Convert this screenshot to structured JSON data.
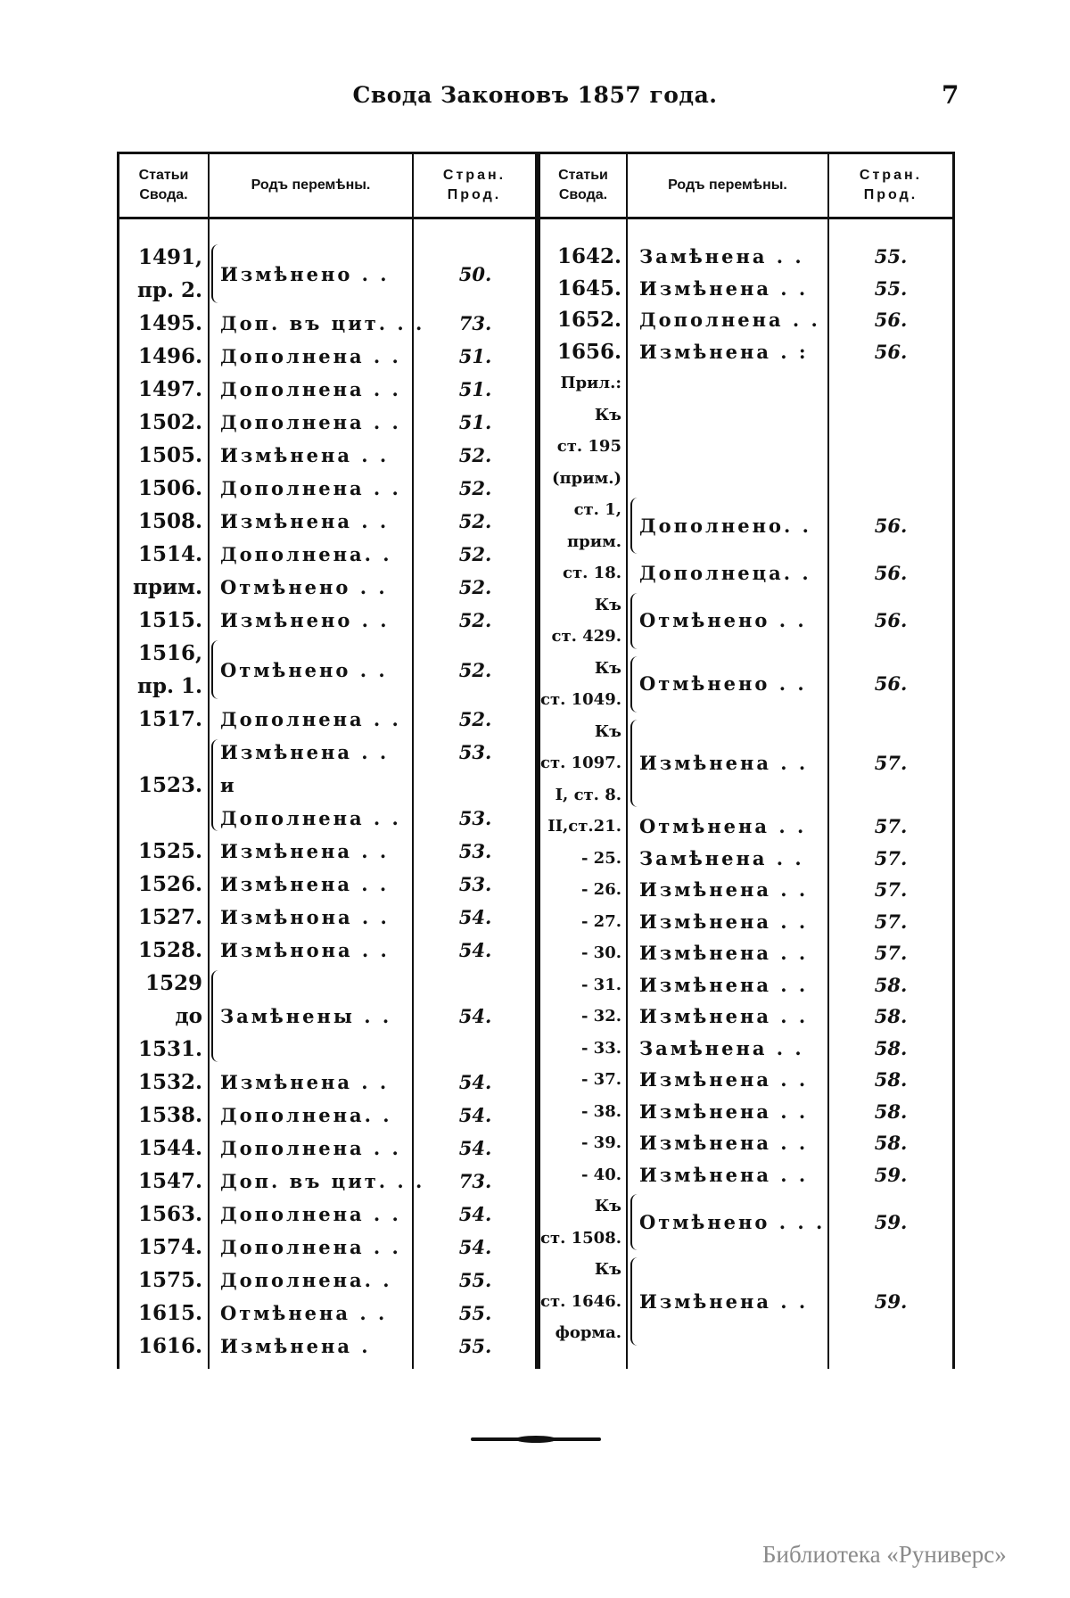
{
  "header": {
    "title": "Свода Законовъ 1857 года.",
    "page_number": "7"
  },
  "columns": {
    "article": [
      "Статьи",
      "Свода."
    ],
    "change": "Родъ перемѣны.",
    "page": [
      "Стран.",
      "Прод."
    ]
  },
  "left": [
    {
      "lines": 2,
      "brace": true,
      "article": [
        "1491,",
        "пр. 2."
      ],
      "change": [
        "Измѣнено . ."
      ],
      "page": [
        "50."
      ]
    },
    {
      "lines": 1,
      "article": [
        "1495."
      ],
      "change": [
        "Доп. въ цит. . ."
      ],
      "page": [
        "73."
      ]
    },
    {
      "lines": 1,
      "article": [
        "1496."
      ],
      "change": [
        "Дополнена . ."
      ],
      "page": [
        "51."
      ]
    },
    {
      "lines": 1,
      "article": [
        "1497."
      ],
      "change": [
        "Дополнена . ."
      ],
      "page": [
        "51."
      ]
    },
    {
      "lines": 1,
      "article": [
        "1502."
      ],
      "change": [
        "Дополнена . ."
      ],
      "page": [
        "51."
      ]
    },
    {
      "lines": 1,
      "article": [
        "1505."
      ],
      "change": [
        "Измѣнена . ."
      ],
      "page": [
        "52."
      ]
    },
    {
      "lines": 1,
      "article": [
        "1506."
      ],
      "change": [
        "Дополнена . ."
      ],
      "page": [
        "52."
      ]
    },
    {
      "lines": 1,
      "article": [
        "1508."
      ],
      "change": [
        "Измѣнена . ."
      ],
      "page": [
        "52."
      ]
    },
    {
      "lines": 1,
      "article": [
        "1514."
      ],
      "change": [
        "Дополнена. ."
      ],
      "page": [
        "52."
      ]
    },
    {
      "lines": 1,
      "article": [
        "прим."
      ],
      "change": [
        "Отмѣнено . ."
      ],
      "page": [
        "52."
      ]
    },
    {
      "lines": 1,
      "article": [
        "1515."
      ],
      "change": [
        "Измѣнено . ."
      ],
      "page": [
        "52."
      ]
    },
    {
      "lines": 2,
      "brace": true,
      "article": [
        "1516,",
        "пр. 1."
      ],
      "change": [
        "Отмѣнено . ."
      ],
      "page": [
        "52."
      ]
    },
    {
      "lines": 1,
      "article": [
        "1517."
      ],
      "change": [
        "Дополнена . ."
      ],
      "page": [
        "52."
      ]
    },
    {
      "lines": 3,
      "brace": true,
      "article": [
        "",
        "1523.",
        ""
      ],
      "change": [
        "Измѣнена . .",
        "и",
        "Дополнена . ."
      ],
      "page": [
        "53.",
        "",
        "53."
      ]
    },
    {
      "lines": 1,
      "article": [
        "1525."
      ],
      "change": [
        "Измѣнена . ."
      ],
      "page": [
        "53."
      ]
    },
    {
      "lines": 1,
      "article": [
        "1526."
      ],
      "change": [
        "Измѣнена . ."
      ],
      "page": [
        "53."
      ]
    },
    {
      "lines": 1,
      "article": [
        "1527."
      ],
      "change": [
        "Измѣнона . ."
      ],
      "page": [
        "54."
      ]
    },
    {
      "lines": 1,
      "article": [
        "1528."
      ],
      "change": [
        "Измѣнона . ."
      ],
      "page": [
        "54."
      ]
    },
    {
      "lines": 3,
      "brace": true,
      "article": [
        "1529",
        "до",
        "1531."
      ],
      "change": [
        "Замѣнены . ."
      ],
      "page": [
        "54."
      ]
    },
    {
      "lines": 1,
      "article": [
        "1532."
      ],
      "change": [
        "Измѣнена . ."
      ],
      "page": [
        "54."
      ]
    },
    {
      "lines": 1,
      "article": [
        "1538."
      ],
      "change": [
        "Дополнена. ."
      ],
      "page": [
        "54."
      ]
    },
    {
      "lines": 1,
      "article": [
        "1544."
      ],
      "change": [
        "Дополнена . ."
      ],
      "page": [
        "54."
      ]
    },
    {
      "lines": 1,
      "article": [
        "1547."
      ],
      "change": [
        "Доп. въ цит. . ."
      ],
      "page": [
        "73."
      ]
    },
    {
      "lines": 1,
      "article": [
        "1563."
      ],
      "change": [
        "Дополнена . ."
      ],
      "page": [
        "54."
      ]
    },
    {
      "lines": 1,
      "article": [
        "1574."
      ],
      "change": [
        "Дополнена . ."
      ],
      "page": [
        "54."
      ]
    },
    {
      "lines": 1,
      "article": [
        "1575."
      ],
      "change": [
        "Дополнена. ."
      ],
      "page": [
        "55."
      ]
    },
    {
      "lines": 1,
      "article": [
        "1615."
      ],
      "change": [
        "Отмѣнена . ."
      ],
      "page": [
        "55."
      ]
    },
    {
      "lines": 1,
      "article": [
        "1616."
      ],
      "change": [
        "Измѣнена ."
      ],
      "page": [
        "55."
      ]
    }
  ],
  "right": [
    {
      "lines": 1,
      "article": [
        "1642."
      ],
      "change": [
        "Замѣнена . ."
      ],
      "page": [
        "55."
      ]
    },
    {
      "lines": 1,
      "article": [
        "1645."
      ],
      "change": [
        "Измѣнена . ."
      ],
      "page": [
        "55."
      ]
    },
    {
      "lines": 1,
      "article": [
        "1652."
      ],
      "change": [
        "Дополнена . ."
      ],
      "page": [
        "56."
      ]
    },
    {
      "lines": 1,
      "article": [
        "1656."
      ],
      "change": [
        "Измѣнена . :"
      ],
      "page": [
        "56."
      ]
    },
    {
      "lines": 4,
      "small": true,
      "article": [
        "Прил.:",
        "Къ",
        "ст. 195",
        "(прим.)"
      ],
      "change": [
        ""
      ],
      "page": [
        ""
      ]
    },
    {
      "lines": 2,
      "brace": true,
      "small": true,
      "article": [
        "ст. 1,",
        "прим."
      ],
      "change": [
        "Дополнено. ."
      ],
      "page": [
        "56."
      ]
    },
    {
      "lines": 1,
      "small": true,
      "article": [
        "ст. 18."
      ],
      "change": [
        "Дополнеца. ."
      ],
      "page": [
        "56."
      ]
    },
    {
      "lines": 2,
      "brace": true,
      "small": true,
      "article": [
        "Къ",
        "ст. 429."
      ],
      "change": [
        "Отмѣнено . ."
      ],
      "page": [
        "56."
      ]
    },
    {
      "lines": 2,
      "brace": true,
      "small": true,
      "article": [
        "Къ",
        "ст. 1049."
      ],
      "change": [
        "Отмѣнено . ."
      ],
      "page": [
        "56."
      ]
    },
    {
      "lines": 3,
      "brace": true,
      "small": true,
      "article": [
        "Къ",
        "ст. 1097.",
        "I, ст. 8."
      ],
      "change": [
        "Измѣнена . ."
      ],
      "page": [
        "57."
      ]
    },
    {
      "lines": 1,
      "small": true,
      "article": [
        "II,ст.21."
      ],
      "change": [
        "Отмѣнена . ."
      ],
      "page": [
        "57."
      ]
    },
    {
      "lines": 1,
      "small": true,
      "article": [
        "- 25."
      ],
      "change": [
        "Замѣнена . ."
      ],
      "page": [
        "57."
      ]
    },
    {
      "lines": 1,
      "small": true,
      "article": [
        "- 26."
      ],
      "change": [
        "Измѣнена . ."
      ],
      "page": [
        "57."
      ]
    },
    {
      "lines": 1,
      "small": true,
      "article": [
        "- 27."
      ],
      "change": [
        "Измѣнена . ."
      ],
      "page": [
        "57."
      ]
    },
    {
      "lines": 1,
      "small": true,
      "article": [
        "- 30."
      ],
      "change": [
        "Измѣнена . ."
      ],
      "page": [
        "57."
      ]
    },
    {
      "lines": 1,
      "small": true,
      "article": [
        "- 31."
      ],
      "change": [
        "Измѣнена . ."
      ],
      "page": [
        "58."
      ]
    },
    {
      "lines": 1,
      "small": true,
      "article": [
        "- 32."
      ],
      "change": [
        "Измѣнена . ."
      ],
      "page": [
        "58."
      ]
    },
    {
      "lines": 1,
      "small": true,
      "article": [
        "- 33."
      ],
      "change": [
        "Замѣнена . ."
      ],
      "page": [
        "58."
      ]
    },
    {
      "lines": 1,
      "small": true,
      "article": [
        "- 37."
      ],
      "change": [
        "Измѣнена . ."
      ],
      "page": [
        "58."
      ]
    },
    {
      "lines": 1,
      "small": true,
      "article": [
        "- 38."
      ],
      "change": [
        "Измѣнена . ."
      ],
      "page": [
        "58."
      ]
    },
    {
      "lines": 1,
      "small": true,
      "article": [
        "- 39."
      ],
      "change": [
        "Измѣнена . ."
      ],
      "page": [
        "58."
      ]
    },
    {
      "lines": 1,
      "small": true,
      "article": [
        "- 40."
      ],
      "change": [
        "Измѣнена . ."
      ],
      "page": [
        "59."
      ]
    },
    {
      "lines": 2,
      "brace": true,
      "small": true,
      "article": [
        "Къ",
        "ст. 1508."
      ],
      "change": [
        "Отмѣнено . . ."
      ],
      "page": [
        "59."
      ]
    },
    {
      "lines": 3,
      "brace": true,
      "small": true,
      "article": [
        "Къ",
        "ст. 1646.",
        "форма."
      ],
      "change": [
        "Измѣнена . ."
      ],
      "page": [
        "59."
      ]
    }
  ],
  "watermark": "Библиотека «Руниверс»"
}
